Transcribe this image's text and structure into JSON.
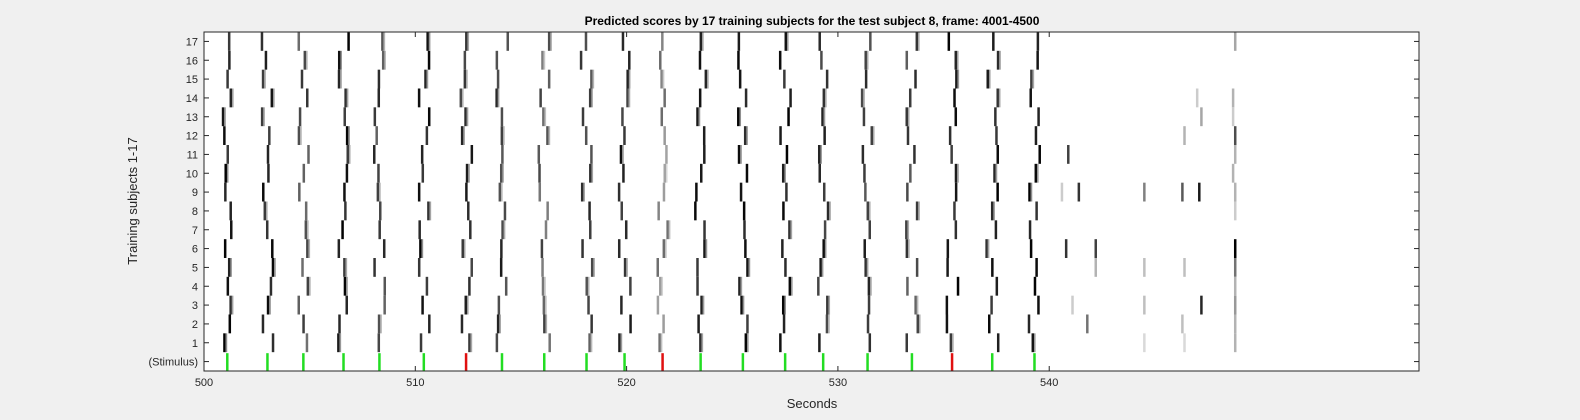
{
  "chart_data": {
    "type": "heatmap",
    "title": "Predicted scores by 17 training subjects for the test subject 8, frame: 4001-4500",
    "xlabel": "Seconds",
    "ylabel": "Training subjects 1-17",
    "xlim": [
      500,
      557.5
    ],
    "x_ticks": [
      500,
      510,
      520,
      530,
      540
    ],
    "x_tick_labels": [
      "500",
      "510",
      "520",
      "530",
      "540"
    ],
    "y_tick_labels": [
      "(Stimulus)",
      "1",
      "2",
      "3",
      "4",
      "5",
      "6",
      "7",
      "8",
      "9",
      "10",
      "11",
      "12",
      "13",
      "14",
      "15",
      "16",
      "17"
    ],
    "stimulus_colors": {
      "correct": "#22dd22",
      "incorrect": "#e01010"
    },
    "stimulus": [
      {
        "t": 501.1,
        "class": "correct"
      },
      {
        "t": 503.0,
        "class": "correct"
      },
      {
        "t": 504.7,
        "class": "correct"
      },
      {
        "t": 506.6,
        "class": "correct"
      },
      {
        "t": 508.3,
        "class": "correct"
      },
      {
        "t": 510.4,
        "class": "correct"
      },
      {
        "t": 512.4,
        "class": "incorrect"
      },
      {
        "t": 514.1,
        "class": "correct"
      },
      {
        "t": 516.1,
        "class": "correct"
      },
      {
        "t": 518.1,
        "class": "correct"
      },
      {
        "t": 519.9,
        "class": "correct"
      },
      {
        "t": 521.7,
        "class": "incorrect"
      },
      {
        "t": 523.5,
        "class": "correct"
      },
      {
        "t": 525.5,
        "class": "correct"
      },
      {
        "t": 527.5,
        "class": "correct"
      },
      {
        "t": 529.3,
        "class": "correct"
      },
      {
        "t": 531.4,
        "class": "correct"
      },
      {
        "t": 533.5,
        "class": "correct"
      },
      {
        "t": 535.4,
        "class": "incorrect"
      },
      {
        "t": 537.3,
        "class": "correct"
      },
      {
        "t": 539.3,
        "class": "correct"
      }
    ],
    "score_events": [
      501.1,
      503.0,
      504.7,
      506.6,
      508.3,
      510.4,
      512.4,
      514.1,
      516.1,
      518.1,
      519.9,
      521.7,
      523.5,
      525.5,
      527.5,
      529.3,
      531.4,
      533.5,
      535.4,
      537.3,
      539.3
    ],
    "event_intensity": [
      1.0,
      1.0,
      0.8,
      1.0,
      0.85,
      1.0,
      0.95,
      0.9,
      0.75,
      0.85,
      0.95,
      0.6,
      1.0,
      1.0,
      1.0,
      0.95,
      0.9,
      0.85,
      1.0,
      1.0,
      1.0
    ],
    "extra_marks": [
      {
        "subject": 17,
        "t": 548.8,
        "score": 0.35
      },
      {
        "subject": 14,
        "t": 547.0,
        "score": 0.2
      },
      {
        "subject": 14,
        "t": 548.7,
        "score": 0.3
      },
      {
        "subject": 13,
        "t": 547.2,
        "score": 0.35
      },
      {
        "subject": 13,
        "t": 548.7,
        "score": 0.2
      },
      {
        "subject": 12,
        "t": 546.4,
        "score": 0.3
      },
      {
        "subject": 12,
        "t": 548.8,
        "score": 0.7
      },
      {
        "subject": 11,
        "t": 540.9,
        "score": 0.75
      },
      {
        "subject": 11,
        "t": 548.8,
        "score": 0.3
      },
      {
        "subject": 10,
        "t": 548.7,
        "score": 0.3
      },
      {
        "subject": 9,
        "t": 540.6,
        "score": 0.2
      },
      {
        "subject": 9,
        "t": 541.4,
        "score": 0.8
      },
      {
        "subject": 9,
        "t": 544.5,
        "score": 0.5
      },
      {
        "subject": 9,
        "t": 546.3,
        "score": 0.65
      },
      {
        "subject": 9,
        "t": 547.1,
        "score": 0.9
      },
      {
        "subject": 9,
        "t": 548.8,
        "score": 0.3
      },
      {
        "subject": 8,
        "t": 548.8,
        "score": 0.2
      },
      {
        "subject": 6,
        "t": 540.8,
        "score": 0.8
      },
      {
        "subject": 6,
        "t": 542.2,
        "score": 0.75
      },
      {
        "subject": 6,
        "t": 548.8,
        "score": 1.0
      },
      {
        "subject": 5,
        "t": 542.2,
        "score": 0.3
      },
      {
        "subject": 5,
        "t": 544.5,
        "score": 0.25
      },
      {
        "subject": 5,
        "t": 546.4,
        "score": 0.25
      },
      {
        "subject": 5,
        "t": 548.8,
        "score": 0.55
      },
      {
        "subject": 4,
        "t": 548.8,
        "score": 0.3
      },
      {
        "subject": 3,
        "t": 541.1,
        "score": 0.2
      },
      {
        "subject": 3,
        "t": 544.5,
        "score": 0.25
      },
      {
        "subject": 3,
        "t": 547.2,
        "score": 0.85
      },
      {
        "subject": 3,
        "t": 548.8,
        "score": 0.4
      },
      {
        "subject": 2,
        "t": 541.8,
        "score": 0.55
      },
      {
        "subject": 2,
        "t": 546.3,
        "score": 0.25
      },
      {
        "subject": 2,
        "t": 548.8,
        "score": 0.3
      },
      {
        "subject": 1,
        "t": 544.5,
        "score": 0.15
      },
      {
        "subject": 1,
        "t": 546.4,
        "score": 0.15
      },
      {
        "subject": 1,
        "t": 548.8,
        "score": 0.3
      }
    ],
    "grid": false,
    "legend": "none"
  }
}
